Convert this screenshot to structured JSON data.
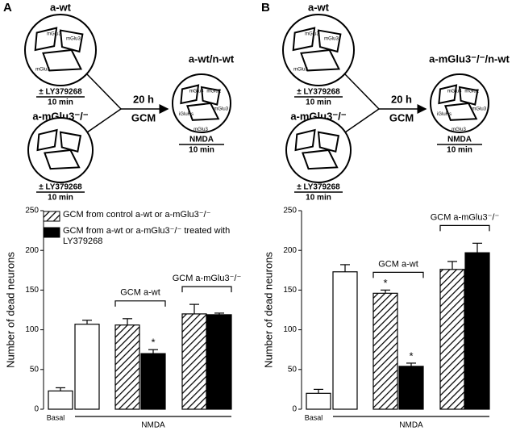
{
  "diagrams": [
    {
      "panel": "A",
      "source_top": {
        "name": "a-wt",
        "receptors": [
          "mGlu3",
          "mGlu3",
          "mGlu3"
        ],
        "treatment": "± LY379268",
        "time": "10 min"
      },
      "source_bottom": {
        "name": "a-mGlu3⁻/⁻",
        "treatment": "± LY379268",
        "time": "10 min"
      },
      "transfer": {
        "time": "20 h",
        "medium": "GCM"
      },
      "target": {
        "name": "a-wt/n-wt",
        "receptors": [
          "mGlu3",
          "mGlu2",
          "iGluRs",
          "mGlu3",
          "mGlu3"
        ],
        "treatment": "NMDA",
        "time": "10 min"
      }
    },
    {
      "panel": "B",
      "source_top": {
        "name": "a-wt",
        "receptors": [
          "mGlu3",
          "mGlu3",
          "mGlu3"
        ],
        "treatment": "± LY379268",
        "time": "10 min"
      },
      "source_bottom": {
        "name": "a-mGlu3⁻/⁻",
        "treatment": "± LY379268",
        "time": "10 min"
      },
      "transfer": {
        "time": "20 h",
        "medium": "GCM"
      },
      "target": {
        "name": "a-mGlu3⁻/⁻/n-wt",
        "receptors": [
          "mGlu3",
          "mGlu2",
          "iGluRs",
          "mGlu3",
          "mGlu3"
        ],
        "treatment": "NMDA",
        "time": "10 min"
      }
    }
  ],
  "chart_data": [
    {
      "type": "bar",
      "ylabel": "Number of dead neurons",
      "categories": [
        "Basal",
        null,
        null,
        null,
        null,
        null
      ],
      "stimulus_label": "NMDA",
      "values": [
        23,
        107,
        106,
        70,
        120,
        119
      ],
      "errors": [
        4,
        5,
        8,
        5,
        12,
        2
      ],
      "bar_styles": [
        "white",
        "white",
        "hatched",
        "black",
        "hatched",
        "black"
      ],
      "group_labels": [
        null,
        null,
        "GCM a-wt",
        null,
        "GCM a-mGlu3⁻/⁻",
        null
      ],
      "stars": [
        null,
        null,
        null,
        "*",
        null,
        null
      ],
      "legend": [
        {
          "name": "GCM from control a-wt or a-mGlu3⁻/⁻",
          "style": "hatched"
        },
        {
          "name": "GCM from a-wt or a-mGlu3⁻/⁻ treated with LY379268",
          "style": "black"
        }
      ],
      "ylim": [
        0,
        250
      ],
      "yticks": [
        0,
        50,
        100,
        150,
        200,
        250
      ]
    },
    {
      "type": "bar",
      "ylabel": "Number of dead neurons",
      "categories": [
        "Basal",
        null,
        null,
        null,
        null,
        null
      ],
      "stimulus_label": "NMDA",
      "values": [
        20,
        173,
        146,
        54,
        176,
        197
      ],
      "errors": [
        5,
        9,
        4,
        4,
        10,
        12
      ],
      "bar_styles": [
        "white",
        "white",
        "hatched",
        "black",
        "hatched",
        "black"
      ],
      "group_labels": [
        null,
        null,
        "GCM a-wt",
        null,
        "GCM a-mGlu3⁻/⁻",
        null
      ],
      "stars": [
        null,
        null,
        "*",
        "*",
        null,
        null
      ],
      "ylim": [
        0,
        250
      ],
      "yticks": [
        0,
        50,
        100,
        150,
        200,
        250
      ]
    }
  ]
}
